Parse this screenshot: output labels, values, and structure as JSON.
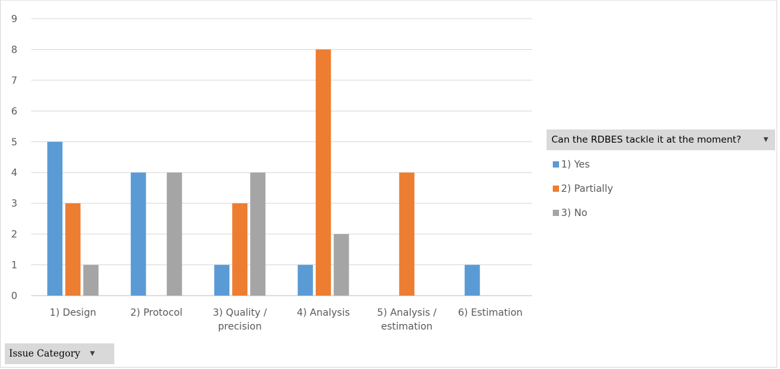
{
  "chart_data": {
    "type": "bar",
    "categories": [
      [
        "1) Design"
      ],
      [
        "2) Protocol"
      ],
      [
        "3) Quality /",
        "precision"
      ],
      [
        "4) Analysis"
      ],
      [
        "5) Analysis /",
        "estimation"
      ],
      [
        "6) Estimation"
      ]
    ],
    "series": [
      {
        "name": "1) Yes",
        "color": "#5b9bd5",
        "values": [
          5,
          4,
          1,
          1,
          null,
          1
        ]
      },
      {
        "name": "2) Partially",
        "color": "#ed7d31",
        "values": [
          3,
          null,
          3,
          8,
          4,
          null
        ]
      },
      {
        "name": "3) No",
        "color": "#a5a5a5",
        "values": [
          1,
          4,
          4,
          2,
          null,
          null
        ]
      }
    ],
    "ylim": [
      0,
      9
    ],
    "yticks": [
      0,
      1,
      2,
      3,
      4,
      5,
      6,
      7,
      8,
      9
    ],
    "grid": true,
    "legend_position": "right"
  },
  "legend_field": {
    "label": "Can the RDBES tackle it at the moment?",
    "arrow_icon": "dropdown-arrow-icon"
  },
  "axis_field": {
    "label": "Issue Category",
    "arrow_icon": "dropdown-arrow-icon"
  }
}
